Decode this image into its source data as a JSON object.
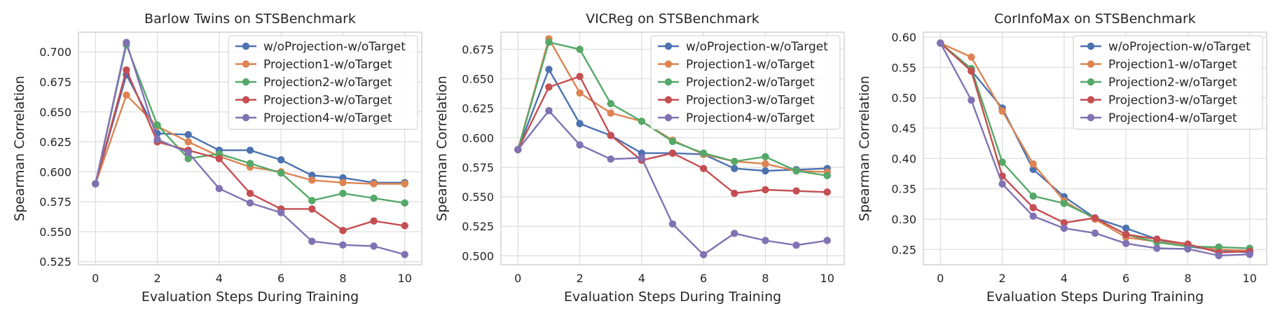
{
  "chart_data": [
    {
      "type": "line",
      "title": "Barlow Twins on STSBenchmark",
      "xlabel": "Evaluation Steps During Training",
      "ylabel": "Spearman Correlation",
      "xlim": [
        -0.55,
        10.55
      ],
      "ylim": [
        0.5225,
        0.7165
      ],
      "xticks": [
        0,
        2,
        4,
        6,
        8,
        10
      ],
      "yticks": [
        0.525,
        0.55,
        0.575,
        0.6,
        0.625,
        0.65,
        0.675,
        0.7
      ],
      "ytick_decimals": 3,
      "legend": "top-right",
      "x": [
        0,
        1,
        2,
        3,
        4,
        5,
        6,
        7,
        8,
        9,
        10
      ],
      "series": [
        {
          "name": "w/oProjection-w/oTarget",
          "color": "#4c72b0",
          "values": [
            0.59,
            0.681,
            0.632,
            0.631,
            0.618,
            0.618,
            0.61,
            0.597,
            0.595,
            0.591,
            0.591
          ]
        },
        {
          "name": "Projection1-w/oTarget",
          "color": "#dd8452",
          "values": [
            0.59,
            0.664,
            0.638,
            0.625,
            0.613,
            0.604,
            0.6,
            0.593,
            0.591,
            0.59,
            0.59
          ]
        },
        {
          "name": "Projection2-w/oTarget",
          "color": "#55a868",
          "values": [
            0.59,
            0.706,
            0.639,
            0.611,
            0.615,
            0.607,
            0.599,
            0.576,
            0.582,
            0.578,
            0.574
          ]
        },
        {
          "name": "Projection3-w/oTarget",
          "color": "#c44e52",
          "values": [
            0.59,
            0.685,
            0.625,
            0.618,
            0.611,
            0.582,
            0.569,
            0.569,
            0.551,
            0.559,
            0.555
          ]
        },
        {
          "name": "Projection4-w/oTarget",
          "color": "#8172b3",
          "values": [
            0.59,
            0.708,
            0.627,
            0.616,
            0.586,
            0.574,
            0.566,
            0.542,
            0.539,
            0.538,
            0.531
          ]
        }
      ]
    },
    {
      "type": "line",
      "title": "VICReg on STSBenchmark",
      "xlabel": "Evaluation Steps During Training",
      "ylabel": "Spearman Correlation",
      "xlim": [
        -0.55,
        10.55
      ],
      "ylim": [
        0.4925,
        0.6895
      ],
      "xticks": [
        0,
        2,
        4,
        6,
        8,
        10
      ],
      "yticks": [
        0.5,
        0.525,
        0.55,
        0.575,
        0.6,
        0.625,
        0.65,
        0.675
      ],
      "ytick_decimals": 3,
      "legend": "top-right",
      "x": [
        0,
        1,
        2,
        3,
        4,
        5,
        6,
        7,
        8,
        9,
        10
      ],
      "series": [
        {
          "name": "w/oProjection-w/oTarget",
          "color": "#4c72b0",
          "values": [
            0.59,
            0.658,
            0.612,
            0.602,
            0.587,
            0.587,
            0.586,
            0.574,
            0.572,
            0.573,
            0.574
          ]
        },
        {
          "name": "Projection1-w/oTarget",
          "color": "#dd8452",
          "values": [
            0.59,
            0.684,
            0.638,
            0.621,
            0.614,
            0.598,
            0.586,
            0.58,
            0.578,
            0.572,
            0.571
          ]
        },
        {
          "name": "Projection2-w/oTarget",
          "color": "#55a868",
          "values": [
            0.59,
            0.681,
            0.675,
            0.629,
            0.614,
            0.597,
            0.587,
            0.58,
            0.584,
            0.572,
            0.568
          ]
        },
        {
          "name": "Projection3-w/oTarget",
          "color": "#c44e52",
          "values": [
            0.59,
            0.643,
            0.652,
            0.602,
            0.581,
            0.587,
            0.574,
            0.553,
            0.556,
            0.555,
            0.554
          ]
        },
        {
          "name": "Projection4-w/oTarget",
          "color": "#8172b3",
          "values": [
            0.59,
            0.623,
            0.594,
            0.582,
            0.583,
            0.527,
            0.501,
            0.519,
            0.513,
            0.509,
            0.513
          ]
        }
      ]
    },
    {
      "type": "line",
      "title": "CorInfoMax on STSBenchmark",
      "xlabel": "Evaluation Steps During Training",
      "ylabel": "Spearman Correlation",
      "xlim": [
        -0.55,
        10.55
      ],
      "ylim": [
        0.225,
        0.608
      ],
      "xticks": [
        0,
        2,
        4,
        6,
        8,
        10
      ],
      "yticks": [
        0.25,
        0.3,
        0.35,
        0.4,
        0.45,
        0.5,
        0.55,
        0.6
      ],
      "ytick_decimals": 2,
      "legend": "top-right",
      "x": [
        0,
        1,
        2,
        3,
        4,
        5,
        6,
        7,
        8,
        9,
        10
      ],
      "series": [
        {
          "name": "w/oProjection-w/oTarget",
          "color": "#4c72b0",
          "values": [
            0.59,
            0.545,
            0.483,
            0.382,
            0.337,
            0.302,
            0.285,
            0.267,
            0.255,
            0.249,
            0.245
          ]
        },
        {
          "name": "Projection1-w/oTarget",
          "color": "#dd8452",
          "values": [
            0.59,
            0.567,
            0.478,
            0.391,
            0.33,
            0.3,
            0.27,
            0.263,
            0.257,
            0.25,
            0.248
          ]
        },
        {
          "name": "Projection2-w/oTarget",
          "color": "#55a868",
          "values": [
            0.59,
            0.548,
            0.394,
            0.338,
            0.326,
            0.302,
            0.275,
            0.262,
            0.255,
            0.254,
            0.252
          ]
        },
        {
          "name": "Projection3-w/oTarget",
          "color": "#c44e52",
          "values": [
            0.59,
            0.544,
            0.371,
            0.319,
            0.294,
            0.302,
            0.275,
            0.267,
            0.259,
            0.245,
            0.247
          ]
        },
        {
          "name": "Projection4-w/oTarget",
          "color": "#8172b3",
          "values": [
            0.59,
            0.496,
            0.358,
            0.305,
            0.285,
            0.277,
            0.26,
            0.252,
            0.251,
            0.24,
            0.242
          ]
        }
      ]
    }
  ]
}
